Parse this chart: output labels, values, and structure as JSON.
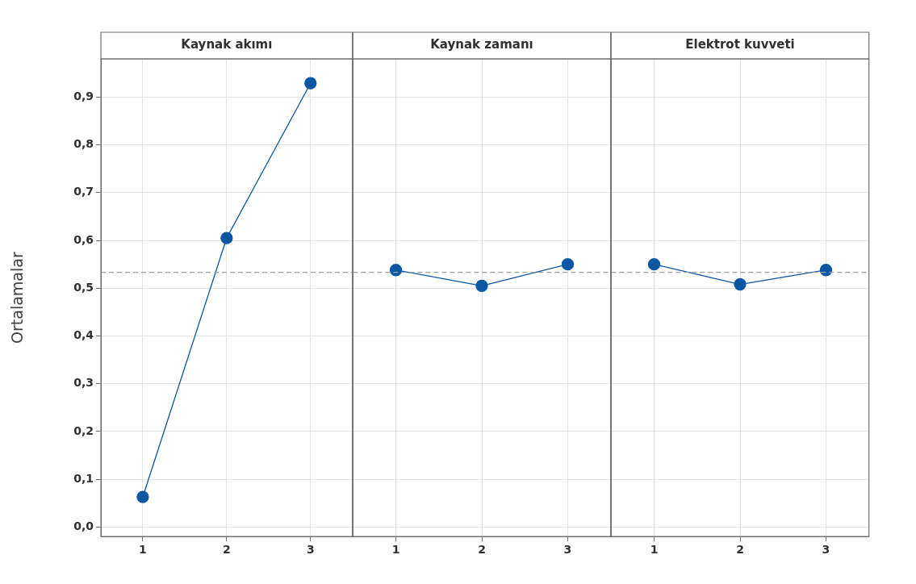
{
  "chart_data": [
    {
      "type": "line",
      "title": "Kaynak akımı",
      "ylabel": "Ortalamalar",
      "categories": [
        "1",
        "2",
        "3"
      ],
      "series": [
        {
          "color": "#0b57a4",
          "values": [
            0.063,
            0.605,
            0.929
          ]
        }
      ],
      "marker": "circle",
      "grid": true,
      "ylim": [
        -0.02,
        0.98
      ],
      "yticks": [
        {
          "value": 0,
          "label": "0,0"
        },
        {
          "value": 0.1,
          "label": "0,1"
        },
        {
          "value": 0.2,
          "label": "0,2"
        },
        {
          "value": 0.3,
          "label": "0,3"
        },
        {
          "value": 0.4,
          "label": "0,4"
        },
        {
          "value": 0.5,
          "label": "0,5"
        },
        {
          "value": 0.6,
          "label": "0,6"
        },
        {
          "value": 0.7,
          "label": "0,7"
        },
        {
          "value": 0.8,
          "label": "0,8"
        },
        {
          "value": 0.9,
          "label": "0,9"
        }
      ],
      "ref_lines": [
        {
          "axis": "y",
          "value": 0.533,
          "color": "#a0a0a0",
          "line_style": "dashed"
        }
      ]
    },
    {
      "type": "line",
      "title": "Kaynak zamanı",
      "categories": [
        "1",
        "2",
        "3"
      ],
      "series": [
        {
          "color": "#0b57a4",
          "values": [
            0.538,
            0.505,
            0.55
          ]
        }
      ],
      "marker": "circle",
      "grid": true,
      "ylim": [
        -0.02,
        0.98
      ],
      "tick_labels": "x",
      "yticks": [
        {
          "value": 0,
          "label": null
        },
        {
          "value": 0.1,
          "label": null
        },
        {
          "value": 0.2,
          "label": null
        },
        {
          "value": 0.3,
          "label": null
        },
        {
          "value": 0.4,
          "label": null
        },
        {
          "value": 0.5,
          "label": null
        },
        {
          "value": 0.6,
          "label": null
        },
        {
          "value": 0.7,
          "label": null
        },
        {
          "value": 0.8,
          "label": null
        },
        {
          "value": 0.9,
          "label": null
        }
      ],
      "ref_lines": [
        {
          "axis": "y",
          "value": 0.533,
          "color": "#a0a0a0",
          "line_style": "dashed"
        }
      ]
    },
    {
      "type": "line",
      "title": "Elektrot kuvveti",
      "categories": [
        "1",
        "2",
        "3"
      ],
      "series": [
        {
          "color": "#0b57a4",
          "values": [
            0.55,
            0.508,
            0.538
          ]
        }
      ],
      "marker": "circle",
      "grid": true,
      "ylim": [
        -0.02,
        0.98
      ],
      "tick_labels": "x",
      "yticks": [
        {
          "value": 0,
          "label": null
        },
        {
          "value": 0.1,
          "label": null
        },
        {
          "value": 0.2,
          "label": null
        },
        {
          "value": 0.3,
          "label": null
        },
        {
          "value": 0.4,
          "label": null
        },
        {
          "value": 0.5,
          "label": null
        },
        {
          "value": 0.6,
          "label": null
        },
        {
          "value": 0.7,
          "label": null
        },
        {
          "value": 0.8,
          "label": null
        },
        {
          "value": 0.9,
          "label": null
        }
      ],
      "ref_lines": [
        {
          "axis": "y",
          "value": 0.533,
          "color": "#a0a0a0",
          "line_style": "dashed"
        }
      ]
    }
  ]
}
